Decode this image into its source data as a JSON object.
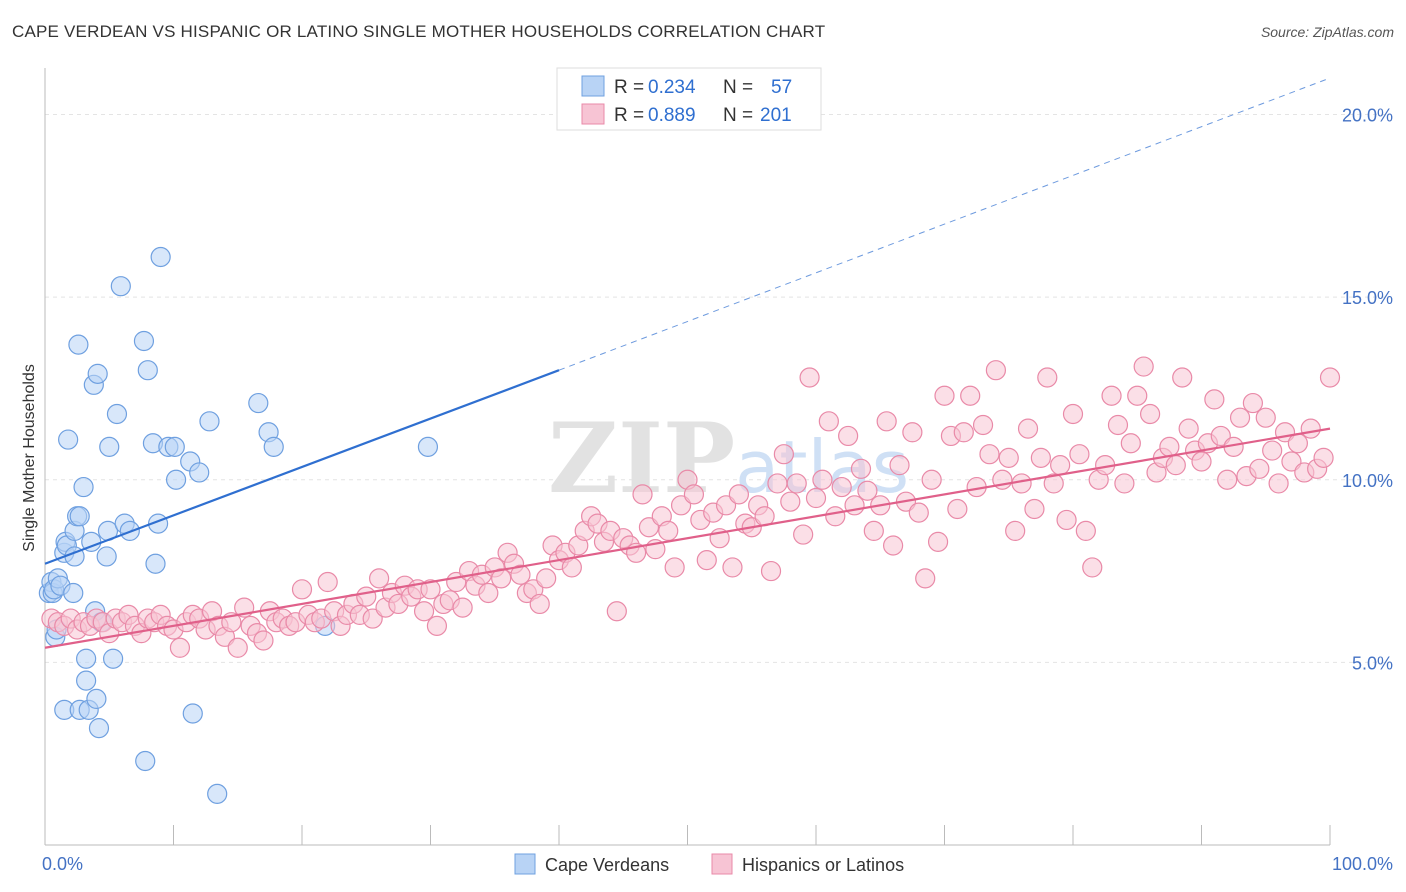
{
  "title": "CAPE VERDEAN VS HISPANIC OR LATINO SINGLE MOTHER HOUSEHOLDS CORRELATION CHART",
  "source": "Source: ZipAtlas.com",
  "watermark": "ZIPatlas",
  "colors": {
    "blue_fill": "#b8d3f5",
    "blue_stroke": "#6fa0e0",
    "blue_line": "#2f6fd0",
    "pink_fill": "#f7c4d4",
    "pink_stroke": "#e98aa8",
    "pink_line": "#e0608a",
    "tick_color": "#4472c4"
  },
  "legend": {
    "rows": [
      {
        "r_label": "R =",
        "r_value": "0.234",
        "n_label": "N =",
        "n_value": "57"
      },
      {
        "r_label": "R =",
        "r_value": "0.889",
        "n_label": "N =",
        "n_value": "201"
      }
    ]
  },
  "bottom_legend": [
    "Cape Verdeans",
    "Hispanics or Latinos"
  ],
  "chart_data": {
    "type": "scatter",
    "title": "CAPE VERDEAN VS HISPANIC OR LATINO SINGLE MOTHER HOUSEHOLDS CORRELATION CHART",
    "xlabel": "",
    "ylabel": "Single Mother Households",
    "x_tick_labels": [
      "0.0%",
      "100.0%"
    ],
    "y_tick_labels": [
      "5.0%",
      "10.0%",
      "15.0%",
      "20.0%"
    ],
    "xlim": [
      0,
      100
    ],
    "ylim": [
      0,
      21
    ],
    "grid": true,
    "legend_position": "top-center",
    "series": [
      {
        "name": "Cape Verdeans",
        "color": "#b8d3f5",
        "trend": {
          "x0": 0,
          "y0": 7.7,
          "x1": 40,
          "y1": 13.0,
          "dashed_to_x": 100,
          "dashed_to_y": 21.0
        },
        "points": [
          [
            0.3,
            6.9
          ],
          [
            0.5,
            7.2
          ],
          [
            0.6,
            6.9
          ],
          [
            0.7,
            7.0
          ],
          [
            0.8,
            5.7
          ],
          [
            0.9,
            5.9
          ],
          [
            1.0,
            7.3
          ],
          [
            1.2,
            7.1
          ],
          [
            1.5,
            3.7
          ],
          [
            1.5,
            8.0
          ],
          [
            1.6,
            8.3
          ],
          [
            1.7,
            8.2
          ],
          [
            1.8,
            11.1
          ],
          [
            2.2,
            6.9
          ],
          [
            2.3,
            7.9
          ],
          [
            2.3,
            8.6
          ],
          [
            2.5,
            9.0
          ],
          [
            2.6,
            13.7
          ],
          [
            2.7,
            3.7
          ],
          [
            2.7,
            9.0
          ],
          [
            3.0,
            9.8
          ],
          [
            3.2,
            4.5
          ],
          [
            3.2,
            5.1
          ],
          [
            3.4,
            3.7
          ],
          [
            3.6,
            8.3
          ],
          [
            3.8,
            12.6
          ],
          [
            3.9,
            6.4
          ],
          [
            4.0,
            4.0
          ],
          [
            4.1,
            12.9
          ],
          [
            4.2,
            3.2
          ],
          [
            4.4,
            6.1
          ],
          [
            4.8,
            7.9
          ],
          [
            4.9,
            8.6
          ],
          [
            5.0,
            10.9
          ],
          [
            5.3,
            5.1
          ],
          [
            5.6,
            11.8
          ],
          [
            5.9,
            15.3
          ],
          [
            6.2,
            8.8
          ],
          [
            6.6,
            8.6
          ],
          [
            7.7,
            13.8
          ],
          [
            7.8,
            2.3
          ],
          [
            8.0,
            13.0
          ],
          [
            8.4,
            11.0
          ],
          [
            8.6,
            7.7
          ],
          [
            8.8,
            8.8
          ],
          [
            9.0,
            16.1
          ],
          [
            9.6,
            10.9
          ],
          [
            10.1,
            10.9
          ],
          [
            10.2,
            10.0
          ],
          [
            11.3,
            10.5
          ],
          [
            11.5,
            3.6
          ],
          [
            12.0,
            10.2
          ],
          [
            12.8,
            11.6
          ],
          [
            13.4,
            1.4
          ],
          [
            16.6,
            12.1
          ],
          [
            17.4,
            11.3
          ],
          [
            17.8,
            10.9
          ],
          [
            21.8,
            6.0
          ],
          [
            29.8,
            10.9
          ]
        ]
      },
      {
        "name": "Hispanics or Latinos",
        "color": "#f7c4d4",
        "trend": {
          "x0": 0,
          "y0": 5.4,
          "x1": 100,
          "y1": 11.4
        },
        "points": [
          [
            0.5,
            6.2
          ],
          [
            1.0,
            6.1
          ],
          [
            1.5,
            6.0
          ],
          [
            2.0,
            6.2
          ],
          [
            2.5,
            5.9
          ],
          [
            3.0,
            6.1
          ],
          [
            3.5,
            6.0
          ],
          [
            4.0,
            6.2
          ],
          [
            4.5,
            6.1
          ],
          [
            5.0,
            5.8
          ],
          [
            5.5,
            6.2
          ],
          [
            6.0,
            6.1
          ],
          [
            6.5,
            6.3
          ],
          [
            7.0,
            6.0
          ],
          [
            7.5,
            5.8
          ],
          [
            8.0,
            6.2
          ],
          [
            8.5,
            6.1
          ],
          [
            9.0,
            6.3
          ],
          [
            9.5,
            6.0
          ],
          [
            10.0,
            5.9
          ],
          [
            10.5,
            5.4
          ],
          [
            11.0,
            6.1
          ],
          [
            11.5,
            6.3
          ],
          [
            12.0,
            6.2
          ],
          [
            12.5,
            5.9
          ],
          [
            13.0,
            6.4
          ],
          [
            13.5,
            6.0
          ],
          [
            14.0,
            5.7
          ],
          [
            14.5,
            6.1
          ],
          [
            15.0,
            5.4
          ],
          [
            15.5,
            6.5
          ],
          [
            16.0,
            6.0
          ],
          [
            16.5,
            5.8
          ],
          [
            17.0,
            5.6
          ],
          [
            17.5,
            6.4
          ],
          [
            18.0,
            6.1
          ],
          [
            18.5,
            6.2
          ],
          [
            19.0,
            6.0
          ],
          [
            19.5,
            6.1
          ],
          [
            20.0,
            7.0
          ],
          [
            20.5,
            6.3
          ],
          [
            21.0,
            6.1
          ],
          [
            21.5,
            6.2
          ],
          [
            22.0,
            7.2
          ],
          [
            22.5,
            6.4
          ],
          [
            23.0,
            6.0
          ],
          [
            23.5,
            6.3
          ],
          [
            24.0,
            6.6
          ],
          [
            24.5,
            6.3
          ],
          [
            25.0,
            6.8
          ],
          [
            25.5,
            6.2
          ],
          [
            26.0,
            7.3
          ],
          [
            26.5,
            6.5
          ],
          [
            27.0,
            6.9
          ],
          [
            27.5,
            6.6
          ],
          [
            28.0,
            7.1
          ],
          [
            28.5,
            6.8
          ],
          [
            29.0,
            7.0
          ],
          [
            29.5,
            6.4
          ],
          [
            30.0,
            7.0
          ],
          [
            30.5,
            6.0
          ],
          [
            31.0,
            6.6
          ],
          [
            31.5,
            6.7
          ],
          [
            32.0,
            7.2
          ],
          [
            32.5,
            6.5
          ],
          [
            33.0,
            7.5
          ],
          [
            33.5,
            7.1
          ],
          [
            34.0,
            7.4
          ],
          [
            34.5,
            6.9
          ],
          [
            35.0,
            7.6
          ],
          [
            35.5,
            7.3
          ],
          [
            36.0,
            8.0
          ],
          [
            36.5,
            7.7
          ],
          [
            37.0,
            7.4
          ],
          [
            37.5,
            6.9
          ],
          [
            38.0,
            7.0
          ],
          [
            38.5,
            6.6
          ],
          [
            39.0,
            7.3
          ],
          [
            39.5,
            8.2
          ],
          [
            40.0,
            7.8
          ],
          [
            40.5,
            8.0
          ],
          [
            41.0,
            7.6
          ],
          [
            41.5,
            8.2
          ],
          [
            42.0,
            8.6
          ],
          [
            42.5,
            9.0
          ],
          [
            43.0,
            8.8
          ],
          [
            43.5,
            8.3
          ],
          [
            44.0,
            8.6
          ],
          [
            44.5,
            6.4
          ],
          [
            45.0,
            8.4
          ],
          [
            45.5,
            8.2
          ],
          [
            46.0,
            8.0
          ],
          [
            46.5,
            9.6
          ],
          [
            47.0,
            8.7
          ],
          [
            47.5,
            8.1
          ],
          [
            48.0,
            9.0
          ],
          [
            48.5,
            8.6
          ],
          [
            49.0,
            7.6
          ],
          [
            49.5,
            9.3
          ],
          [
            50.0,
            10.0
          ],
          [
            50.5,
            9.6
          ],
          [
            51.0,
            8.9
          ],
          [
            51.5,
            7.8
          ],
          [
            52.0,
            9.1
          ],
          [
            52.5,
            8.4
          ],
          [
            53.0,
            9.3
          ],
          [
            53.5,
            7.6
          ],
          [
            54.0,
            9.6
          ],
          [
            54.5,
            8.8
          ],
          [
            55.0,
            8.7
          ],
          [
            55.5,
            9.3
          ],
          [
            56.0,
            9.0
          ],
          [
            56.5,
            7.5
          ],
          [
            57.0,
            9.9
          ],
          [
            57.5,
            10.7
          ],
          [
            58.0,
            9.4
          ],
          [
            58.5,
            9.9
          ],
          [
            59.0,
            8.5
          ],
          [
            59.5,
            12.8
          ],
          [
            60.0,
            9.5
          ],
          [
            60.5,
            10.0
          ],
          [
            61.0,
            11.6
          ],
          [
            61.5,
            9.0
          ],
          [
            62.0,
            9.8
          ],
          [
            62.5,
            11.2
          ],
          [
            63.0,
            9.3
          ],
          [
            63.5,
            10.3
          ],
          [
            64.0,
            9.7
          ],
          [
            64.5,
            8.6
          ],
          [
            65.0,
            9.3
          ],
          [
            65.5,
            11.6
          ],
          [
            66.0,
            8.2
          ],
          [
            66.5,
            10.4
          ],
          [
            67.0,
            9.4
          ],
          [
            67.5,
            11.3
          ],
          [
            68.0,
            9.1
          ],
          [
            68.5,
            7.3
          ],
          [
            69.0,
            10.0
          ],
          [
            69.5,
            8.3
          ],
          [
            70.0,
            12.3
          ],
          [
            70.5,
            11.2
          ],
          [
            71.0,
            9.2
          ],
          [
            71.5,
            11.3
          ],
          [
            72.0,
            12.3
          ],
          [
            72.5,
            9.8
          ],
          [
            73.0,
            11.5
          ],
          [
            73.5,
            10.7
          ],
          [
            74.0,
            13.0
          ],
          [
            74.5,
            10.0
          ],
          [
            75.0,
            10.6
          ],
          [
            75.5,
            8.6
          ],
          [
            76.0,
            9.9
          ],
          [
            76.5,
            11.4
          ],
          [
            77.0,
            9.2
          ],
          [
            77.5,
            10.6
          ],
          [
            78.0,
            12.8
          ],
          [
            78.5,
            9.9
          ],
          [
            79.0,
            10.4
          ],
          [
            79.5,
            8.9
          ],
          [
            80.0,
            11.8
          ],
          [
            80.5,
            10.7
          ],
          [
            81.0,
            8.6
          ],
          [
            81.5,
            7.6
          ],
          [
            82.0,
            10.0
          ],
          [
            82.5,
            10.4
          ],
          [
            83.0,
            12.3
          ],
          [
            83.5,
            11.5
          ],
          [
            84.0,
            9.9
          ],
          [
            84.5,
            11.0
          ],
          [
            85.0,
            12.3
          ],
          [
            85.5,
            13.1
          ],
          [
            86.0,
            11.8
          ],
          [
            86.5,
            10.2
          ],
          [
            87.0,
            10.6
          ],
          [
            87.5,
            10.9
          ],
          [
            88.0,
            10.4
          ],
          [
            88.5,
            12.8
          ],
          [
            89.0,
            11.4
          ],
          [
            89.5,
            10.8
          ],
          [
            90.0,
            10.5
          ],
          [
            90.5,
            11.0
          ],
          [
            91.0,
            12.2
          ],
          [
            91.5,
            11.2
          ],
          [
            92.0,
            10.0
          ],
          [
            92.5,
            10.9
          ],
          [
            93.0,
            11.7
          ],
          [
            93.5,
            10.1
          ],
          [
            94.0,
            12.1
          ],
          [
            94.5,
            10.3
          ],
          [
            95.0,
            11.7
          ],
          [
            95.5,
            10.8
          ],
          [
            96.0,
            9.9
          ],
          [
            96.5,
            11.3
          ],
          [
            97.0,
            10.5
          ],
          [
            97.5,
            11.0
          ],
          [
            98.0,
            10.2
          ],
          [
            98.5,
            11.4
          ],
          [
            99.0,
            10.3
          ],
          [
            99.5,
            10.6
          ],
          [
            100.0,
            12.8
          ]
        ]
      }
    ]
  }
}
